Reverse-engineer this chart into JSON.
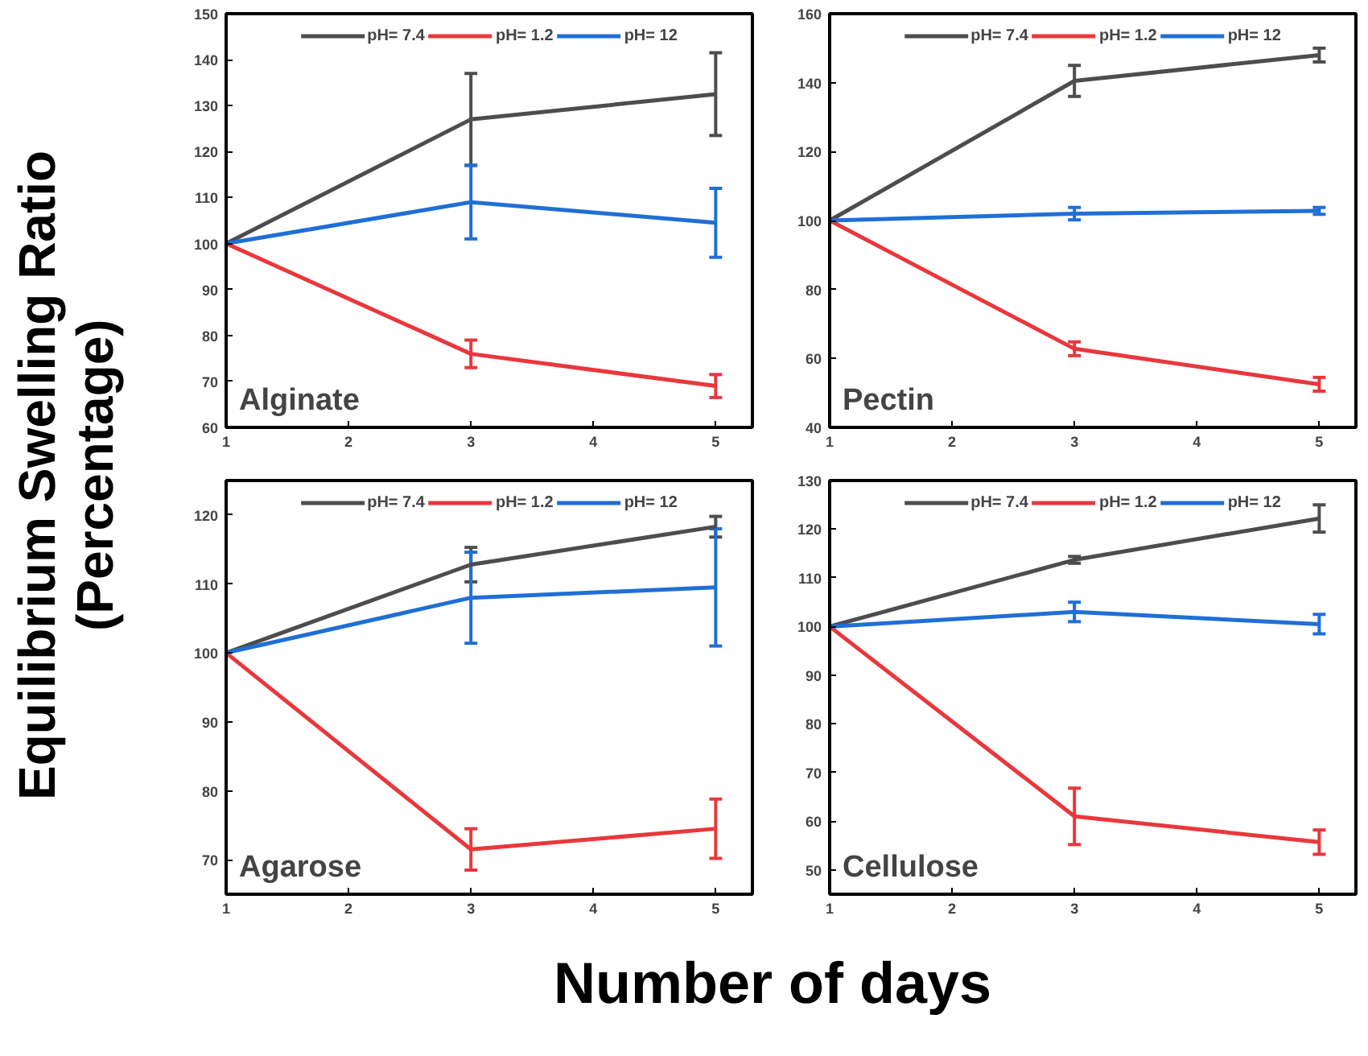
{
  "chart_data": [
    {
      "type": "line",
      "ylabel": "Equilibrium Swelling Ratio (Percentage)",
      "x": [
        1,
        3,
        5
      ],
      "xlim": [
        1,
        5.3
      ],
      "xticks": [
        1,
        2,
        3,
        4,
        5
      ],
      "ylim": [
        60,
        150
      ],
      "yticks": [
        60,
        70,
        80,
        90,
        100,
        110,
        120,
        130,
        140,
        150
      ],
      "grid": false,
      "legend": "top",
      "annotations": [
        "Alginate"
      ],
      "series": [
        {
          "name": "pH= 7.4",
          "color": "#4d4d4d",
          "values": [
            100,
            127,
            132.5
          ],
          "errors": [
            null,
            10,
            9
          ]
        },
        {
          "name": "pH= 1.2",
          "color": "#e8383d",
          "values": [
            100,
            76,
            69
          ],
          "errors": [
            null,
            3,
            2.5
          ]
        },
        {
          "name": "pH= 12",
          "color": "#1f6fd6",
          "values": [
            100,
            109,
            104.5
          ],
          "errors": [
            null,
            8,
            7.5
          ]
        }
      ]
    },
    {
      "type": "line",
      "x": [
        1,
        3,
        5
      ],
      "xlim": [
        1,
        5.3
      ],
      "xticks": [
        1,
        2,
        3,
        4,
        5
      ],
      "ylim": [
        40,
        160
      ],
      "yticks": [
        40,
        60,
        80,
        100,
        120,
        140,
        160
      ],
      "grid": false,
      "legend": "top",
      "annotations": [
        "Pectin"
      ],
      "series": [
        {
          "name": "pH= 7.4",
          "color": "#4d4d4d",
          "values": [
            100,
            140.5,
            148
          ],
          "errors": [
            null,
            4.5,
            2
          ]
        },
        {
          "name": "pH= 1.2",
          "color": "#e8383d",
          "values": [
            100,
            62.8,
            52.5
          ],
          "errors": [
            null,
            2,
            2
          ]
        },
        {
          "name": "pH= 12",
          "color": "#1f6fd6",
          "values": [
            100,
            102,
            102.8
          ],
          "errors": [
            null,
            1.8,
            1
          ]
        }
      ]
    },
    {
      "type": "line",
      "xlabel": "Number of days",
      "x": [
        1,
        3,
        5
      ],
      "xlim": [
        1,
        5.3
      ],
      "xticks": [
        1,
        2,
        3,
        4,
        5
      ],
      "ylim": [
        65,
        125
      ],
      "yticks": [
        70,
        80,
        90,
        100,
        110,
        120
      ],
      "grid": false,
      "legend": "top",
      "annotations": [
        "Agarose"
      ],
      "series": [
        {
          "name": "pH= 7.4",
          "color": "#4d4d4d",
          "values": [
            100,
            112.8,
            118.3
          ],
          "errors": [
            null,
            2.5,
            1.5
          ]
        },
        {
          "name": "pH= 1.2",
          "color": "#e8383d",
          "values": [
            100,
            71.5,
            74.5
          ],
          "errors": [
            null,
            3,
            4.3
          ]
        },
        {
          "name": "pH= 12",
          "color": "#1f6fd6",
          "values": [
            100,
            108,
            109.5
          ],
          "errors": [
            null,
            6.6,
            8.5
          ]
        }
      ]
    },
    {
      "type": "line",
      "x": [
        1,
        3,
        5
      ],
      "xlim": [
        1,
        5.3
      ],
      "xticks": [
        1,
        2,
        3,
        4,
        5
      ],
      "ylim": [
        45,
        130
      ],
      "yticks": [
        50,
        60,
        70,
        80,
        90,
        100,
        110,
        120,
        130
      ],
      "grid": false,
      "legend": "top",
      "annotations": [
        "Cellulose"
      ],
      "series": [
        {
          "name": "pH= 7.4",
          "color": "#4d4d4d",
          "values": [
            100,
            113.7,
            122.2
          ],
          "errors": [
            null,
            0.7,
            2.8
          ]
        },
        {
          "name": "pH= 1.2",
          "color": "#e8383d",
          "values": [
            100,
            61,
            55.7
          ],
          "errors": [
            null,
            5.8,
            2.5
          ]
        },
        {
          "name": "pH= 12",
          "color": "#1f6fd6",
          "values": [
            100,
            103,
            100.5
          ],
          "errors": [
            null,
            2,
            2
          ]
        }
      ]
    }
  ]
}
